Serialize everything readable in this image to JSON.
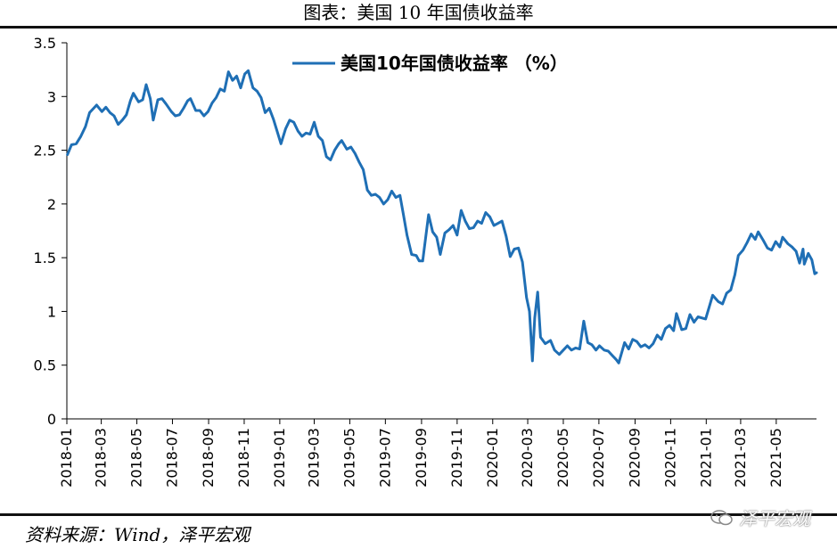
{
  "header": {
    "title": "图表：美国 10 年国债收益率"
  },
  "footer": {
    "source": "资料来源：Wind，泽平宏观",
    "watermark": "泽平宏观",
    "watermark_icon": "wechat-icon"
  },
  "colors": {
    "series": "#1f6fb5",
    "axis": "#000000"
  },
  "chart_data": {
    "type": "line",
    "legend_position": "top-center",
    "grid": false,
    "ylim": [
      0,
      3.5
    ],
    "yticks": [
      "0",
      "0.5",
      "1",
      "1.5",
      "2",
      "2.5",
      "3",
      "3.5"
    ],
    "xticks": [
      "2018-01",
      "2018-03",
      "2018-05",
      "2018-07",
      "2018-09",
      "2018-11",
      "2019-01",
      "2019-03",
      "2019-05",
      "2019-07",
      "2019-09",
      "2019-11",
      "2020-01",
      "2020-03",
      "2020-05",
      "2020-07",
      "2020-09",
      "2020-11",
      "2021-01",
      "2021-03",
      "2021-05"
    ],
    "xlim": [
      "2018-01-01",
      "2021-07-09"
    ],
    "series": [
      {
        "name": "美国10年国债收益率 （%）",
        "points": [
          [
            "2018-01-02",
            2.46
          ],
          [
            "2018-01-09",
            2.55
          ],
          [
            "2018-01-17",
            2.56
          ],
          [
            "2018-01-25",
            2.63
          ],
          [
            "2018-02-02",
            2.72
          ],
          [
            "2018-02-09",
            2.85
          ],
          [
            "2018-02-21",
            2.92
          ],
          [
            "2018-03-02",
            2.86
          ],
          [
            "2018-03-09",
            2.9
          ],
          [
            "2018-03-16",
            2.85
          ],
          [
            "2018-03-23",
            2.82
          ],
          [
            "2018-03-30",
            2.74
          ],
          [
            "2018-04-06",
            2.78
          ],
          [
            "2018-04-13",
            2.83
          ],
          [
            "2018-04-20",
            2.96
          ],
          [
            "2018-04-25",
            3.03
          ],
          [
            "2018-05-04",
            2.95
          ],
          [
            "2018-05-11",
            2.97
          ],
          [
            "2018-05-17",
            3.11
          ],
          [
            "2018-05-24",
            2.98
          ],
          [
            "2018-05-29",
            2.78
          ],
          [
            "2018-06-06",
            2.97
          ],
          [
            "2018-06-13",
            2.98
          ],
          [
            "2018-06-20",
            2.93
          ],
          [
            "2018-06-29",
            2.86
          ],
          [
            "2018-07-06",
            2.82
          ],
          [
            "2018-07-13",
            2.83
          ],
          [
            "2018-07-20",
            2.89
          ],
          [
            "2018-07-27",
            2.96
          ],
          [
            "2018-08-01",
            2.98
          ],
          [
            "2018-08-10",
            2.87
          ],
          [
            "2018-08-17",
            2.87
          ],
          [
            "2018-08-24",
            2.82
          ],
          [
            "2018-08-31",
            2.86
          ],
          [
            "2018-09-07",
            2.94
          ],
          [
            "2018-09-14",
            2.99
          ],
          [
            "2018-09-21",
            3.07
          ],
          [
            "2018-09-28",
            3.05
          ],
          [
            "2018-10-05",
            3.23
          ],
          [
            "2018-10-12",
            3.15
          ],
          [
            "2018-10-19",
            3.19
          ],
          [
            "2018-10-26",
            3.08
          ],
          [
            "2018-11-02",
            3.21
          ],
          [
            "2018-11-08",
            3.24
          ],
          [
            "2018-11-16",
            3.08
          ],
          [
            "2018-11-23",
            3.05
          ],
          [
            "2018-11-30",
            2.99
          ],
          [
            "2018-12-07",
            2.85
          ],
          [
            "2018-12-14",
            2.89
          ],
          [
            "2018-12-21",
            2.79
          ],
          [
            "2019-01-03",
            2.56
          ],
          [
            "2019-01-11",
            2.7
          ],
          [
            "2019-01-18",
            2.78
          ],
          [
            "2019-01-25",
            2.76
          ],
          [
            "2019-02-01",
            2.68
          ],
          [
            "2019-02-08",
            2.63
          ],
          [
            "2019-02-15",
            2.66
          ],
          [
            "2019-02-22",
            2.65
          ],
          [
            "2019-03-01",
            2.76
          ],
          [
            "2019-03-08",
            2.63
          ],
          [
            "2019-03-15",
            2.59
          ],
          [
            "2019-03-22",
            2.44
          ],
          [
            "2019-03-29",
            2.41
          ],
          [
            "2019-04-05",
            2.5
          ],
          [
            "2019-04-12",
            2.56
          ],
          [
            "2019-04-17",
            2.59
          ],
          [
            "2019-04-26",
            2.51
          ],
          [
            "2019-05-03",
            2.53
          ],
          [
            "2019-05-10",
            2.47
          ],
          [
            "2019-05-17",
            2.39
          ],
          [
            "2019-05-24",
            2.32
          ],
          [
            "2019-05-31",
            2.13
          ],
          [
            "2019-06-07",
            2.08
          ],
          [
            "2019-06-14",
            2.09
          ],
          [
            "2019-06-21",
            2.06
          ],
          [
            "2019-06-28",
            2.0
          ],
          [
            "2019-07-05",
            2.04
          ],
          [
            "2019-07-12",
            2.12
          ],
          [
            "2019-07-19",
            2.06
          ],
          [
            "2019-07-26",
            2.08
          ],
          [
            "2019-08-01",
            1.9
          ],
          [
            "2019-08-07",
            1.71
          ],
          [
            "2019-08-15",
            1.53
          ],
          [
            "2019-08-23",
            1.52
          ],
          [
            "2019-08-28",
            1.47
          ],
          [
            "2019-09-03",
            1.47
          ],
          [
            "2019-09-13",
            1.9
          ],
          [
            "2019-09-20",
            1.74
          ],
          [
            "2019-09-27",
            1.69
          ],
          [
            "2019-10-03",
            1.53
          ],
          [
            "2019-10-11",
            1.73
          ],
          [
            "2019-10-18",
            1.76
          ],
          [
            "2019-10-25",
            1.8
          ],
          [
            "2019-11-01",
            1.71
          ],
          [
            "2019-11-08",
            1.94
          ],
          [
            "2019-11-15",
            1.84
          ],
          [
            "2019-11-22",
            1.77
          ],
          [
            "2019-11-29",
            1.78
          ],
          [
            "2019-12-06",
            1.84
          ],
          [
            "2019-12-13",
            1.82
          ],
          [
            "2019-12-20",
            1.92
          ],
          [
            "2019-12-27",
            1.88
          ],
          [
            "2020-01-03",
            1.8
          ],
          [
            "2020-01-10",
            1.82
          ],
          [
            "2020-01-17",
            1.84
          ],
          [
            "2020-01-24",
            1.7
          ],
          [
            "2020-01-31",
            1.51
          ],
          [
            "2020-02-07",
            1.58
          ],
          [
            "2020-02-14",
            1.59
          ],
          [
            "2020-02-21",
            1.46
          ],
          [
            "2020-02-28",
            1.13
          ],
          [
            "2020-03-04",
            1.0
          ],
          [
            "2020-03-09",
            0.54
          ],
          [
            "2020-03-13",
            0.94
          ],
          [
            "2020-03-18",
            1.18
          ],
          [
            "2020-03-23",
            0.76
          ],
          [
            "2020-03-31",
            0.7
          ],
          [
            "2020-04-09",
            0.73
          ],
          [
            "2020-04-16",
            0.64
          ],
          [
            "2020-04-24",
            0.6
          ],
          [
            "2020-05-01",
            0.64
          ],
          [
            "2020-05-08",
            0.68
          ],
          [
            "2020-05-15",
            0.64
          ],
          [
            "2020-05-22",
            0.66
          ],
          [
            "2020-05-29",
            0.65
          ],
          [
            "2020-06-05",
            0.91
          ],
          [
            "2020-06-12",
            0.71
          ],
          [
            "2020-06-19",
            0.69
          ],
          [
            "2020-06-26",
            0.64
          ],
          [
            "2020-07-02",
            0.68
          ],
          [
            "2020-07-10",
            0.64
          ],
          [
            "2020-07-17",
            0.63
          ],
          [
            "2020-07-24",
            0.59
          ],
          [
            "2020-07-31",
            0.55
          ],
          [
            "2020-08-04",
            0.52
          ],
          [
            "2020-08-14",
            0.71
          ],
          [
            "2020-08-21",
            0.65
          ],
          [
            "2020-08-28",
            0.74
          ],
          [
            "2020-09-04",
            0.72
          ],
          [
            "2020-09-11",
            0.67
          ],
          [
            "2020-09-18",
            0.69
          ],
          [
            "2020-09-25",
            0.66
          ],
          [
            "2020-10-02",
            0.7
          ],
          [
            "2020-10-09",
            0.78
          ],
          [
            "2020-10-16",
            0.74
          ],
          [
            "2020-10-23",
            0.84
          ],
          [
            "2020-10-30",
            0.87
          ],
          [
            "2020-11-06",
            0.82
          ],
          [
            "2020-11-11",
            0.98
          ],
          [
            "2020-11-20",
            0.83
          ],
          [
            "2020-11-27",
            0.84
          ],
          [
            "2020-12-04",
            0.97
          ],
          [
            "2020-12-11",
            0.9
          ],
          [
            "2020-12-18",
            0.95
          ],
          [
            "2020-12-31",
            0.93
          ],
          [
            "2021-01-06",
            1.04
          ],
          [
            "2021-01-12",
            1.15
          ],
          [
            "2021-01-22",
            1.09
          ],
          [
            "2021-01-29",
            1.07
          ],
          [
            "2021-02-05",
            1.17
          ],
          [
            "2021-02-12",
            1.2
          ],
          [
            "2021-02-19",
            1.34
          ],
          [
            "2021-02-25",
            1.52
          ],
          [
            "2021-03-05",
            1.57
          ],
          [
            "2021-03-12",
            1.64
          ],
          [
            "2021-03-19",
            1.72
          ],
          [
            "2021-03-26",
            1.67
          ],
          [
            "2021-03-31",
            1.74
          ],
          [
            "2021-04-09",
            1.66
          ],
          [
            "2021-04-16",
            1.59
          ],
          [
            "2021-04-23",
            1.57
          ],
          [
            "2021-04-30",
            1.65
          ],
          [
            "2021-05-07",
            1.6
          ],
          [
            "2021-05-12",
            1.69
          ],
          [
            "2021-05-21",
            1.63
          ],
          [
            "2021-05-28",
            1.6
          ],
          [
            "2021-06-04",
            1.56
          ],
          [
            "2021-06-10",
            1.45
          ],
          [
            "2021-06-16",
            1.58
          ],
          [
            "2021-06-18",
            1.44
          ],
          [
            "2021-06-25",
            1.54
          ],
          [
            "2021-07-01",
            1.48
          ],
          [
            "2021-07-06",
            1.35
          ],
          [
            "2021-07-09",
            1.36
          ]
        ]
      }
    ]
  }
}
